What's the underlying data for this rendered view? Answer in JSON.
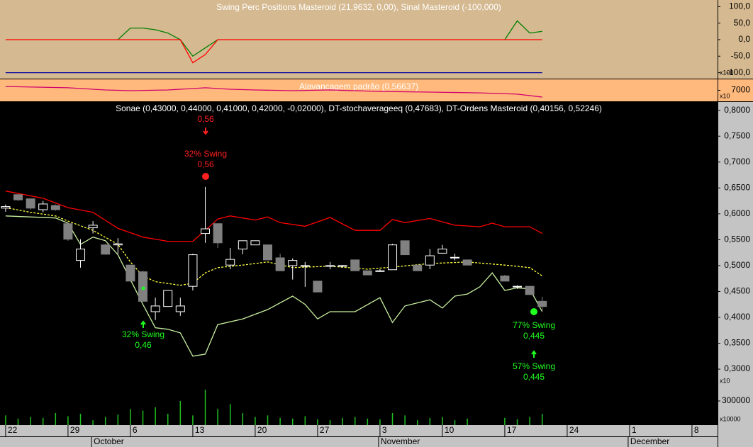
{
  "chart_data": [
    {
      "type": "line",
      "title": "Swing Perc Positions Masteroid (21,9632, 0,00), Sinal Masteroid (-100,000)",
      "axis_unit": "x100",
      "ylim": [
        -118,
        120
      ],
      "yticks": [
        {
          "value": 100,
          "label": "100,0"
        },
        {
          "value": 50,
          "label": "50,0"
        },
        {
          "value": 0,
          "label": "0,0"
        },
        {
          "value": -50,
          "label": "-50,0"
        },
        {
          "value": -100,
          "label": "-100,0"
        }
      ],
      "series": [
        {
          "color": "#008000",
          "x": [
            9,
            10,
            11,
            12,
            13,
            14,
            15,
            16,
            17,
            18,
            39,
            40,
            41,
            42,
            43
          ],
          "values": [
            0,
            35,
            35,
            30,
            20,
            0,
            -50,
            -25,
            0,
            null,
            null,
            0,
            57,
            20,
            25
          ]
        },
        {
          "color": "#ff0000",
          "x": [
            0,
            14,
            15,
            16,
            17,
            43
          ],
          "values": [
            0,
            0,
            -70,
            -45,
            0,
            0
          ]
        },
        {
          "color": "#0000a0",
          "x": [
            0,
            43
          ],
          "values": [
            -100,
            -100
          ]
        }
      ]
    },
    {
      "type": "line",
      "title": "Alavancagem padrão (0,56637)",
      "axis_unit": "x10",
      "ylim": [
        6900,
        7100
      ],
      "yticks": [
        7000
      ],
      "series": [
        {
          "color": "#d0006f",
          "x": [
            0,
            5,
            8,
            10,
            13,
            15,
            16,
            18,
            20,
            23,
            26,
            30,
            34,
            38,
            41,
            43
          ],
          "values": [
            7035,
            7023,
            7003,
            6997,
            7003,
            7016,
            7023,
            7010,
            7003,
            6997,
            7003,
            6990,
            6984,
            6977,
            6965,
            6939
          ]
        }
      ]
    },
    {
      "type": "candlestick",
      "title": "Sonae (0,43000, 0,44000, 0,41000, 0,42000, -0,02000), DT-stochaverageeq (0,47683), DT-Ordens Masteroid (0,40156, 0,52246)",
      "xlim": [
        -0.45,
        57.05
      ],
      "xticks": [
        {
          "value": 0,
          "label": "22"
        },
        {
          "value": 5,
          "label": "29"
        },
        {
          "value": 10,
          "label": "6"
        },
        {
          "value": 15,
          "label": "13"
        },
        {
          "value": 20,
          "label": "20"
        },
        {
          "value": 25,
          "label": "27"
        },
        {
          "value": 30,
          "label": "3"
        },
        {
          "value": 35,
          "label": "10"
        },
        {
          "value": 40,
          "label": "17"
        },
        {
          "value": 45,
          "label": "24"
        },
        {
          "value": 50,
          "label": "1"
        },
        {
          "value": 55,
          "label": "8"
        }
      ],
      "months": [
        {
          "value": 7,
          "label": "October"
        },
        {
          "value": 30,
          "label": "November"
        },
        {
          "value": 50,
          "label": "December"
        }
      ],
      "ylim": [
        0.192,
        0.816
      ],
      "yticks": [
        {
          "value": 0.8,
          "label": "0,8000"
        },
        {
          "value": 0.75,
          "label": "0,7500"
        },
        {
          "value": 0.7,
          "label": "0,7000"
        },
        {
          "value": 0.65,
          "label": "0,6500"
        },
        {
          "value": 0.6,
          "label": "0,6000"
        },
        {
          "value": 0.55,
          "label": "0,5500"
        },
        {
          "value": 0.5,
          "label": "0,5000"
        },
        {
          "value": 0.45,
          "label": "0,4500"
        },
        {
          "value": 0.4,
          "label": "0,4000"
        },
        {
          "value": 0.35,
          "label": "0,3500"
        },
        {
          "value": 0.3,
          "label": "0,3000"
        }
      ],
      "axis_unit": "x10",
      "x": [
        0,
        1,
        2,
        3,
        4,
        5,
        6,
        7,
        8,
        9,
        10,
        11,
        12,
        13,
        14,
        15,
        16,
        17,
        18,
        19,
        20,
        21,
        22,
        23,
        24,
        25,
        26,
        27,
        28,
        29,
        30,
        31,
        32,
        33,
        34,
        35,
        36,
        37,
        40,
        41,
        42,
        43
      ],
      "open": [
        0.611,
        0.637,
        0.629,
        0.608,
        0.616,
        0.581,
        0.51,
        0.573,
        0.54,
        0.54,
        0.501,
        0.488,
        0.411,
        0.421,
        0.411,
        0.46,
        0.562,
        0.581,
        0.501,
        0.532,
        0.54,
        0.54,
        0.515,
        0.5,
        0.499,
        0.47,
        0.499,
        0.499,
        0.511,
        0.49,
        0.489,
        0.492,
        0.548,
        0.501,
        0.501,
        0.524,
        0.515,
        0.511,
        0.48,
        0.459,
        0.46,
        0.431
      ],
      "high": [
        0.618,
        0.638,
        0.629,
        0.625,
        0.618,
        0.581,
        0.551,
        0.586,
        0.542,
        0.553,
        0.501,
        0.49,
        0.438,
        0.452,
        0.438,
        0.523,
        0.652,
        0.581,
        0.534,
        0.548,
        0.548,
        0.54,
        0.523,
        0.514,
        0.507,
        0.47,
        0.507,
        0.501,
        0.511,
        0.49,
        0.493,
        0.542,
        0.548,
        0.501,
        0.532,
        0.54,
        0.523,
        0.511,
        0.482,
        0.462,
        0.46,
        0.44
      ],
      "low": [
        0.604,
        0.625,
        0.608,
        0.603,
        0.606,
        0.548,
        0.496,
        0.562,
        0.521,
        0.523,
        0.47,
        0.431,
        0.395,
        0.421,
        0.403,
        0.452,
        0.544,
        0.534,
        0.493,
        0.522,
        0.54,
        0.511,
        0.49,
        0.473,
        0.459,
        0.449,
        0.493,
        0.496,
        0.49,
        0.482,
        0.488,
        0.492,
        0.521,
        0.49,
        0.493,
        0.523,
        0.51,
        0.501,
        0.47,
        0.455,
        0.444,
        0.411
      ],
      "close": [
        0.614,
        0.627,
        0.611,
        0.619,
        0.608,
        0.551,
        0.532,
        0.578,
        0.522,
        0.542,
        0.47,
        0.431,
        0.422,
        0.452,
        0.422,
        0.521,
        0.571,
        0.544,
        0.512,
        0.548,
        0.548,
        0.511,
        0.49,
        0.51,
        0.5,
        0.449,
        0.5,
        0.5,
        0.49,
        0.482,
        0.49,
        0.54,
        0.521,
        0.49,
        0.519,
        0.532,
        0.516,
        0.501,
        0.47,
        0.46,
        0.444,
        0.421
      ],
      "series": [
        {
          "color": "#ff0000",
          "x": [
            0,
            3,
            5,
            7,
            9,
            11,
            13,
            15,
            16,
            17,
            18,
            20,
            21,
            22,
            24,
            26,
            28,
            30,
            31,
            32,
            34,
            36,
            38,
            39,
            40,
            42,
            43
          ],
          "values": [
            0.644,
            0.63,
            0.612,
            0.603,
            0.572,
            0.555,
            0.547,
            0.547,
            0.568,
            0.59,
            0.596,
            0.588,
            0.594,
            0.583,
            0.576,
            0.593,
            0.568,
            0.568,
            0.589,
            0.583,
            0.591,
            0.578,
            0.575,
            0.582,
            0.575,
            0.575,
            0.562
          ]
        },
        {
          "color": "#c8f0a0",
          "x": [
            0,
            4,
            5,
            6,
            7,
            8,
            9,
            10,
            11,
            12,
            13,
            14,
            15,
            16,
            17,
            19,
            21,
            23,
            24,
            25,
            26,
            28,
            30,
            31,
            32,
            34,
            35,
            36,
            37,
            38,
            39,
            40,
            41,
            42,
            43
          ],
          "values": [
            0.596,
            0.592,
            0.582,
            0.541,
            0.555,
            0.548,
            0.521,
            0.473,
            0.425,
            0.38,
            0.377,
            0.37,
            0.325,
            0.329,
            0.386,
            0.397,
            0.415,
            0.441,
            0.425,
            0.397,
            0.411,
            0.411,
            0.438,
            0.39,
            0.422,
            0.434,
            0.418,
            0.441,
            0.445,
            0.459,
            0.486,
            0.452,
            0.457,
            0.455,
            0.411
          ]
        },
        {
          "color": "#ffff40",
          "dashed": true,
          "x": [
            0,
            2,
            4,
            5,
            7,
            9,
            10,
            11,
            12,
            14,
            15,
            16,
            17,
            19,
            21,
            23,
            26,
            29,
            31,
            34,
            37,
            40,
            42,
            43
          ],
          "values": [
            0.612,
            0.603,
            0.596,
            0.586,
            0.568,
            0.541,
            0.507,
            0.48,
            0.469,
            0.462,
            0.466,
            0.486,
            0.496,
            0.501,
            0.507,
            0.496,
            0.499,
            0.493,
            0.497,
            0.504,
            0.507,
            0.501,
            0.496,
            0.48
          ]
        }
      ],
      "annotations": [
        {
          "color": "#ff2020",
          "lines": [
            "0,56"
          ]
        },
        {
          "color": "#ff2020",
          "lines": [
            "32% Swing",
            "0,56"
          ]
        },
        {
          "color": "#20ff20",
          "lines": [
            "32% Swing",
            "0,46"
          ]
        },
        {
          "color": "#20ff20",
          "lines": [
            "77% Swing",
            "0,445"
          ]
        },
        {
          "color": "#20ff20",
          "lines": [
            "57% Swing",
            "0,445"
          ]
        }
      ]
    },
    {
      "type": "bar",
      "axis_unit": "x10000",
      "color": "#20c020",
      "ylim": [
        0,
        450000
      ],
      "yticks": [
        300000
      ],
      "x": [
        0,
        1,
        2,
        3,
        4,
        5,
        6,
        7,
        8,
        9,
        10,
        11,
        12,
        13,
        14,
        15,
        16,
        17,
        18,
        19,
        20,
        21,
        22,
        23,
        24,
        25,
        26,
        27,
        28,
        29,
        30,
        31,
        32,
        33,
        34,
        35,
        36,
        37,
        40,
        41,
        42,
        43
      ],
      "values": [
        120000,
        80000,
        100000,
        90000,
        150000,
        110000,
        140000,
        60000,
        100000,
        130000,
        200000,
        180000,
        220000,
        140000,
        300000,
        120000,
        440000,
        200000,
        260000,
        150000,
        100000,
        120000,
        90000,
        80000,
        110000,
        70000,
        60000,
        90000,
        100000,
        80000,
        70000,
        150000,
        120000,
        60000,
        90000,
        100000,
        60000,
        80000,
        90000,
        70000,
        100000,
        140000
      ]
    }
  ]
}
